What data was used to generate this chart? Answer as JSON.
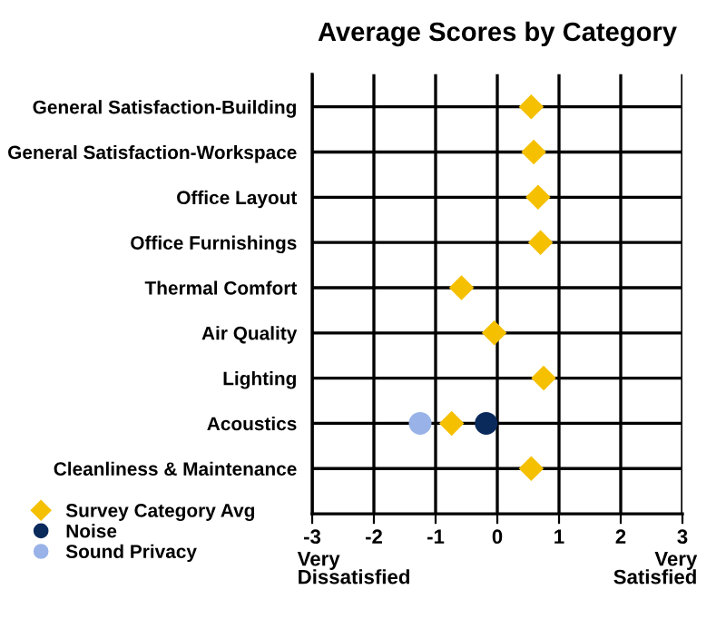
{
  "chart_data": {
    "type": "scatter",
    "title": "Average Scores by Category",
    "orientation": "horizontal",
    "categories": [
      "General Satisfaction-Building",
      "General Satisfaction-Workspace",
      "Office Layout",
      "Office Furnishings",
      "Thermal Comfort",
      "Air Quality",
      "Lighting",
      "Acoustics",
      "Cleanliness & Maintenance"
    ],
    "series": [
      {
        "name": "Survey Category Avg",
        "color": "#f5c000",
        "marker": "diamond",
        "values": [
          0.55,
          0.59,
          0.66,
          0.7,
          -0.58,
          -0.05,
          0.75,
          -0.74,
          0.55
        ]
      },
      {
        "name": "Noise",
        "color": "#0a2a5c",
        "marker": "circle",
        "values": [
          null,
          null,
          null,
          null,
          null,
          null,
          null,
          -0.18,
          null
        ]
      },
      {
        "name": "Sound Privacy",
        "color": "#99b3e8",
        "marker": "circle",
        "values": [
          null,
          null,
          null,
          null,
          null,
          null,
          null,
          -1.25,
          null
        ]
      }
    ],
    "xlim": [
      -3,
      3
    ],
    "xticks": [
      -3,
      -2,
      -1,
      0,
      1,
      2,
      3
    ],
    "grid": true,
    "legend": "bottom left",
    "annotations": [
      "Very Dissatisfied",
      "Very Satisfied"
    ]
  }
}
